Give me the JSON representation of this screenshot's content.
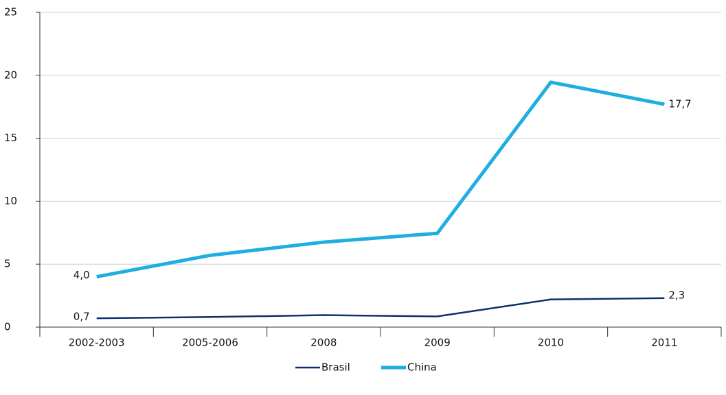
{
  "chart_data": {
    "type": "line",
    "categories": [
      "2002-2003",
      "2005-2006",
      "2008",
      "2009",
      "2010",
      "2011"
    ],
    "series": [
      {
        "name": "Brasil",
        "color": "#0d2f6e",
        "width": 2.5,
        "values": [
          0.7,
          0.8,
          0.95,
          0.85,
          2.2,
          2.3
        ],
        "value_labels": [
          "0,7",
          null,
          null,
          null,
          null,
          "2,3"
        ]
      },
      {
        "name": "China",
        "color": "#1eaee0",
        "width": 5,
        "values": [
          4.0,
          5.7,
          6.75,
          7.45,
          19.45,
          17.7
        ],
        "value_labels": [
          "4,0",
          null,
          null,
          null,
          null,
          "17,7"
        ]
      }
    ],
    "ylim": [
      0,
      25
    ],
    "yticks": [
      0,
      5,
      10,
      15,
      20,
      25
    ],
    "grid": true,
    "legend": "bottom"
  }
}
